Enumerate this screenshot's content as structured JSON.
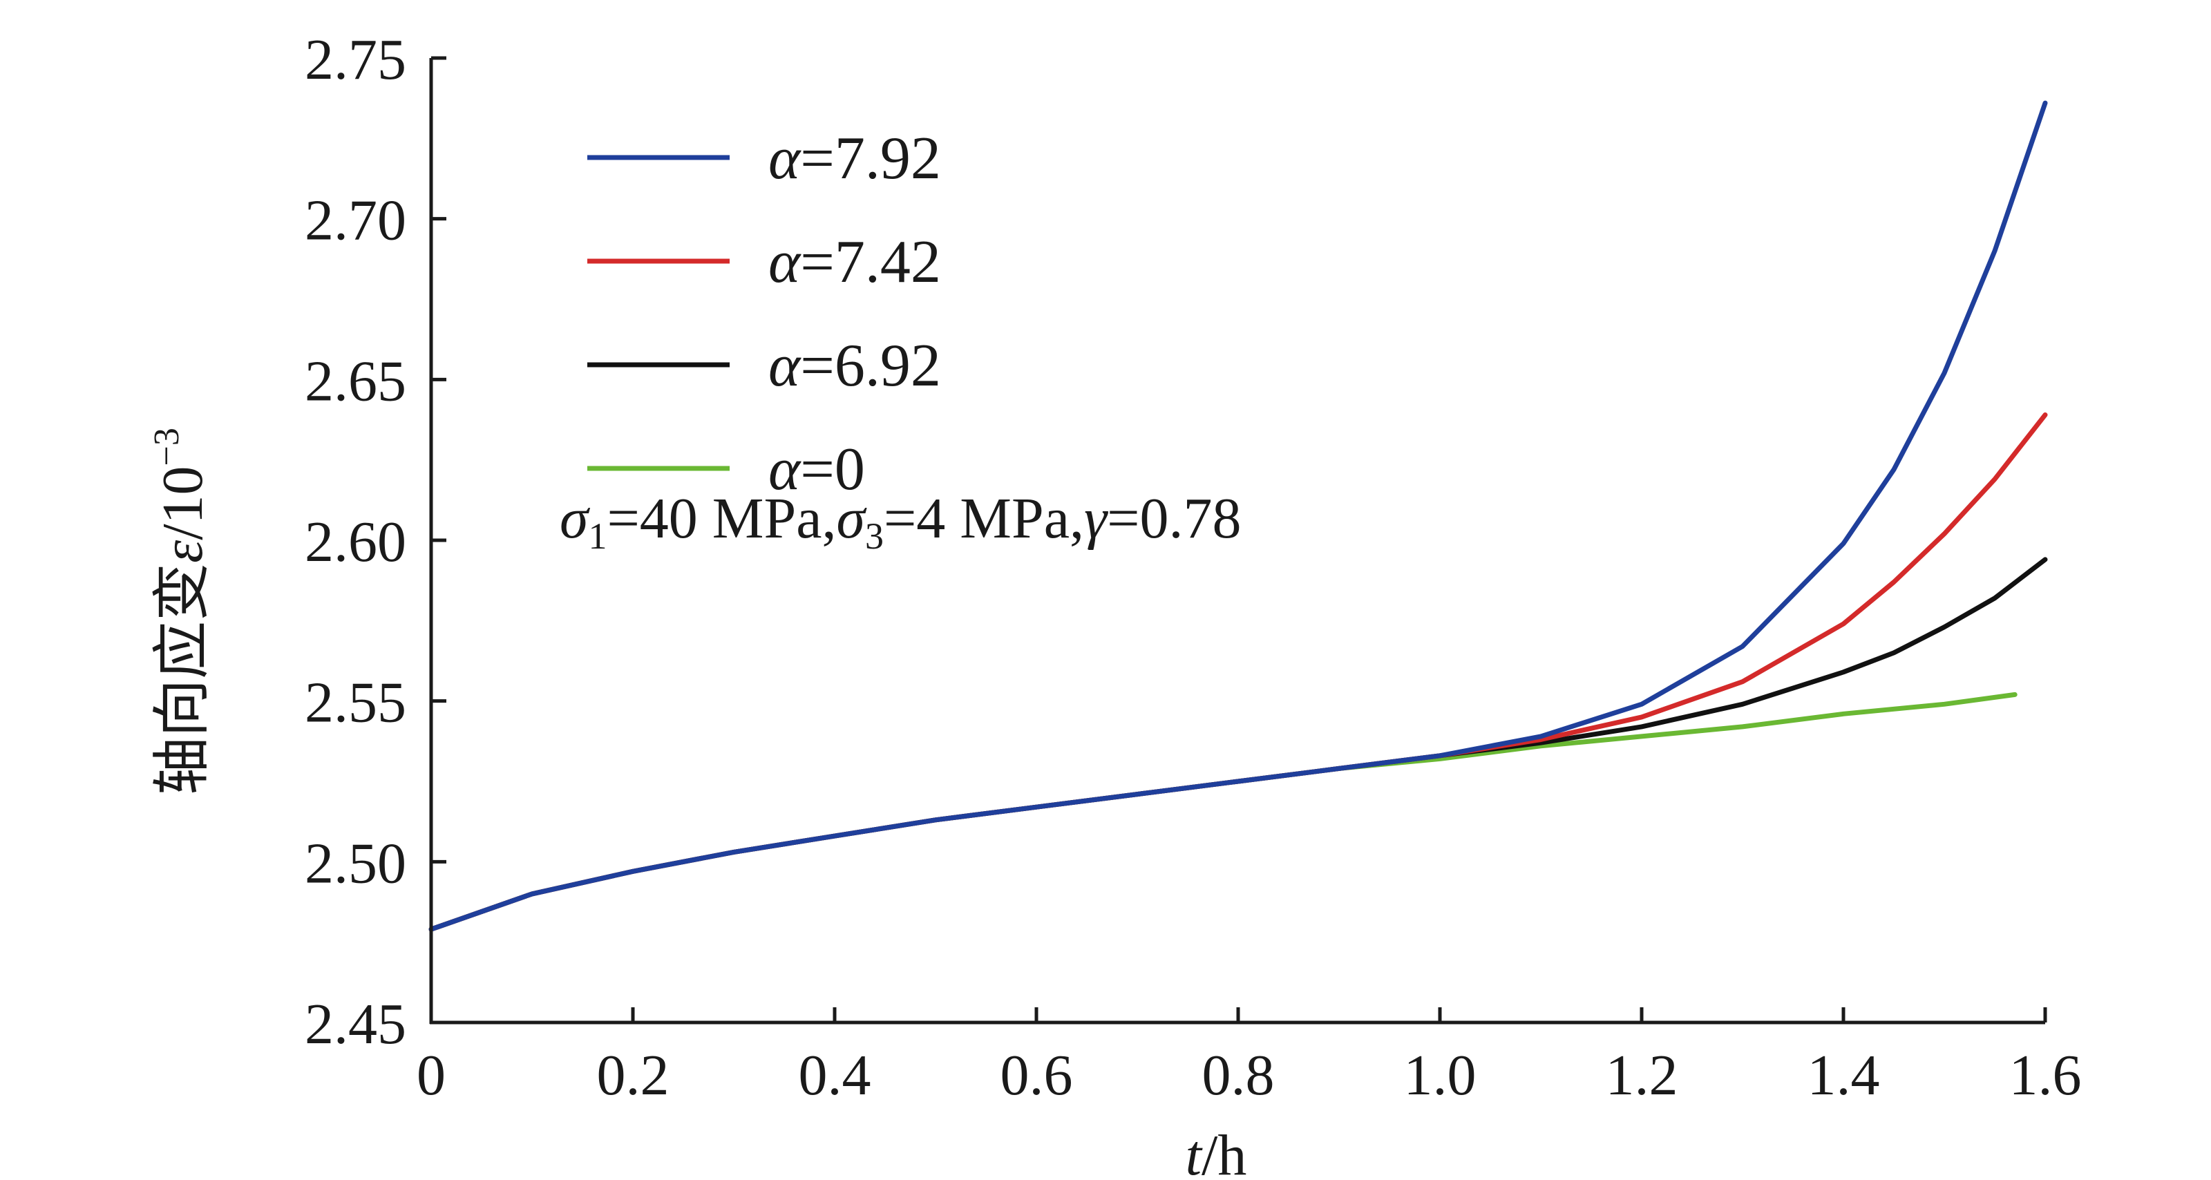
{
  "chart_data": {
    "type": "line",
    "xlabel": {
      "var": "t",
      "unit": "/h"
    },
    "ylabel": {
      "prefix": "轴向应变",
      "var": "ε",
      "unit": "/10",
      "exp": "−3"
    },
    "xlim": [
      0,
      1.6
    ],
    "ylim": [
      2.45,
      2.75
    ],
    "x_ticks": [
      0,
      0.2,
      0.4,
      0.6,
      0.8,
      1.0,
      1.2,
      1.4,
      1.6
    ],
    "x_tick_labels": [
      "0",
      "0.2",
      "0.4",
      "0.6",
      "0.8",
      "1.0",
      "1.2",
      "1.4",
      "1.6"
    ],
    "y_ticks": [
      2.45,
      2.5,
      2.55,
      2.6,
      2.65,
      2.7,
      2.75
    ],
    "y_tick_labels": [
      "2.45",
      "2.50",
      "2.55",
      "2.60",
      "2.65",
      "2.70",
      "2.75"
    ],
    "grid": false,
    "legend_position": "top-left",
    "annotation": {
      "s1": "σ",
      "s1_sub": "1",
      "s1_val": "=40 MPa,",
      "s3": "σ",
      "s3_sub": "3",
      "s3_val": "=4 MPa,",
      "g": "γ",
      "g_val": "=0.78"
    },
    "series": [
      {
        "name": "α=7.92",
        "sym": "α",
        "val": "=7.92",
        "color": "#1f3f9b",
        "x": [
          0,
          0.1,
          0.2,
          0.3,
          0.4,
          0.5,
          0.6,
          0.7,
          0.8,
          0.9,
          1.0,
          1.1,
          1.2,
          1.3,
          1.4,
          1.45,
          1.5,
          1.55,
          1.6
        ],
        "y": [
          2.479,
          2.49,
          2.497,
          2.503,
          2.508,
          2.513,
          2.517,
          2.521,
          2.525,
          2.529,
          2.533,
          2.539,
          2.549,
          2.567,
          2.599,
          2.622,
          2.652,
          2.69,
          2.736
        ]
      },
      {
        "name": "α=7.42",
        "sym": "α",
        "val": "=7.42",
        "color": "#d42a2a",
        "x": [
          0,
          0.1,
          0.2,
          0.3,
          0.4,
          0.5,
          0.6,
          0.7,
          0.8,
          0.9,
          1.0,
          1.1,
          1.2,
          1.3,
          1.4,
          1.45,
          1.5,
          1.55,
          1.6
        ],
        "y": [
          2.479,
          2.49,
          2.497,
          2.503,
          2.508,
          2.513,
          2.517,
          2.521,
          2.525,
          2.529,
          2.533,
          2.538,
          2.545,
          2.556,
          2.574,
          2.587,
          2.602,
          2.619,
          2.639
        ]
      },
      {
        "name": "α=6.92",
        "sym": "α",
        "val": "=6.92",
        "color": "#111111",
        "x": [
          0,
          0.1,
          0.2,
          0.3,
          0.4,
          0.5,
          0.6,
          0.7,
          0.8,
          0.9,
          1.0,
          1.1,
          1.2,
          1.3,
          1.4,
          1.45,
          1.5,
          1.55,
          1.6
        ],
        "y": [
          2.479,
          2.49,
          2.497,
          2.503,
          2.508,
          2.513,
          2.517,
          2.521,
          2.525,
          2.529,
          2.533,
          2.537,
          2.542,
          2.549,
          2.559,
          2.565,
          2.573,
          2.582,
          2.594
        ]
      },
      {
        "name": "α=0",
        "sym": "α",
        "val": "=0",
        "color": "#6ab833",
        "x": [
          0,
          0.1,
          0.2,
          0.3,
          0.4,
          0.5,
          0.6,
          0.7,
          0.8,
          0.9,
          1.0,
          1.1,
          1.2,
          1.3,
          1.4,
          1.5,
          1.57
        ],
        "y": [
          2.479,
          2.49,
          2.497,
          2.503,
          2.508,
          2.513,
          2.517,
          2.521,
          2.525,
          2.529,
          2.532,
          2.536,
          2.539,
          2.542,
          2.546,
          2.549,
          2.552
        ]
      }
    ]
  }
}
